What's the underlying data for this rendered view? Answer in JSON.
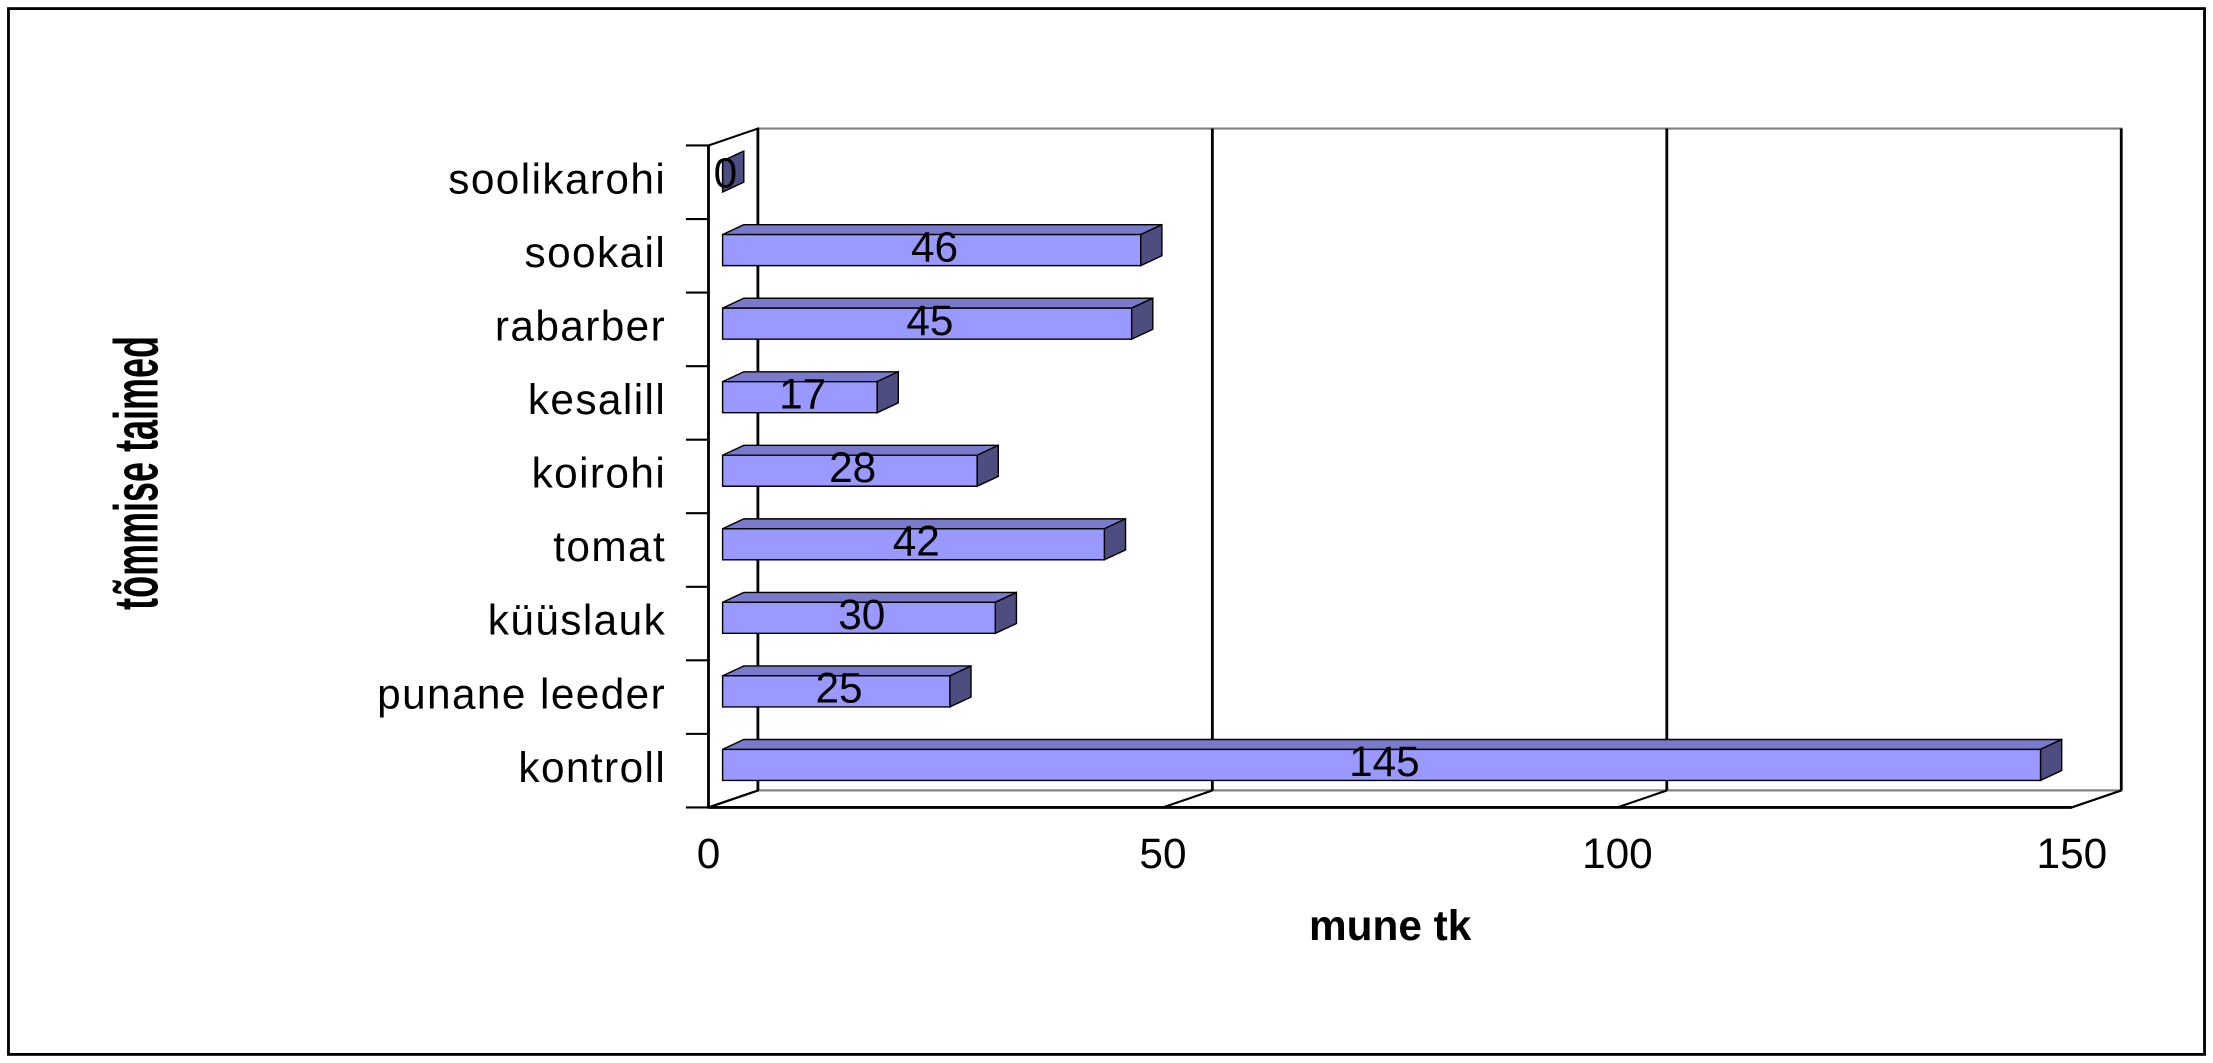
{
  "chart_data": {
    "type": "bar",
    "orientation": "horizontal",
    "x_label": "mune tk",
    "y_label": "tõmmise taimed",
    "categories": [
      "soolikarohi",
      "sookail",
      "rabarber",
      "kesalill",
      "koirohi",
      "tomat",
      "küüslauk",
      "punane leeder",
      "kontroll"
    ],
    "values": [
      0,
      46,
      45,
      17,
      28,
      42,
      30,
      25,
      145
    ],
    "color": "#9999ff",
    "xlim": [
      0,
      150
    ],
    "xticks": [
      0,
      50,
      100,
      150
    ],
    "grid": true
  }
}
